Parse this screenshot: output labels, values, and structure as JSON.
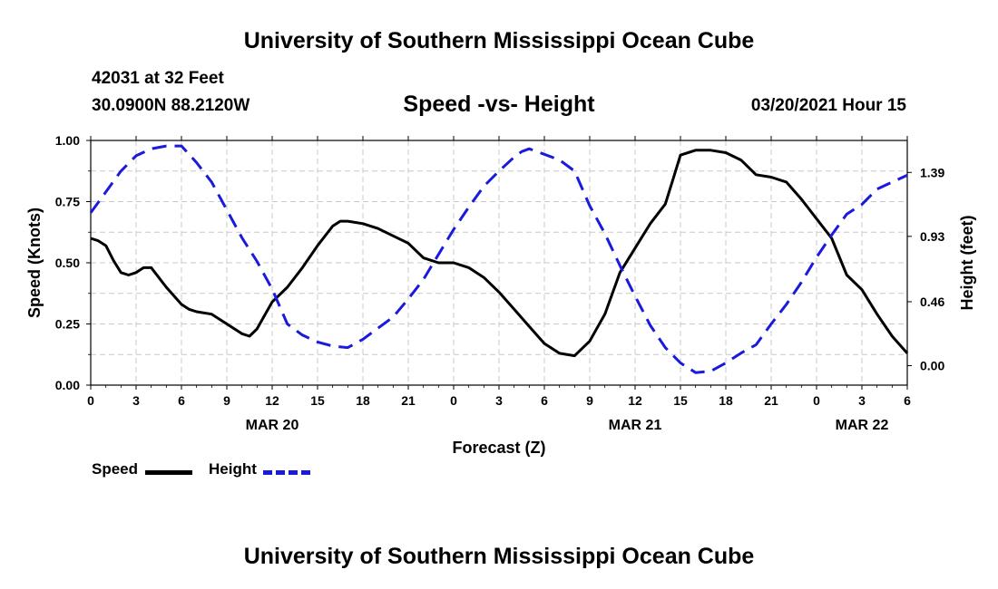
{
  "header": {
    "title": "University of Southern Mississippi Ocean Cube",
    "station": "42031 at 32 Feet",
    "coords": "30.0900N 88.2120W",
    "subtitle": "Speed -vs- Height",
    "datetime": "03/20/2021 Hour 15"
  },
  "footer": {
    "title": "University of Southern Mississippi Ocean Cube"
  },
  "legend": {
    "speed_label": "Speed",
    "height_label": "Height"
  },
  "chart_data": {
    "type": "line",
    "title": "Speed -vs- Height",
    "xlabel": "Forecast (Z)",
    "ylabel_left": "Speed (Knots)",
    "ylabel_right": "Height (feet)",
    "x_range": [
      0,
      54
    ],
    "x_ticks": [
      0,
      3,
      6,
      9,
      12,
      15,
      18,
      21,
      24,
      27,
      30,
      33,
      36,
      39,
      42,
      45,
      48,
      51,
      54
    ],
    "x_tick_labels": [
      "0",
      "3",
      "6",
      "9",
      "12",
      "15",
      "18",
      "21",
      "0",
      "3",
      "6",
      "9",
      "12",
      "15",
      "18",
      "21",
      "0",
      "3",
      "6"
    ],
    "date_labels": [
      {
        "x": 12,
        "label": "MAR 20"
      },
      {
        "x": 36,
        "label": "MAR 21"
      },
      {
        "x": 51,
        "label": "MAR 22"
      }
    ],
    "y_left_range": [
      0,
      1
    ],
    "y_left_ticks": [
      0.0,
      0.25,
      0.5,
      0.75,
      1.0
    ],
    "y_left_tick_labels": [
      "0.00",
      "0.25",
      "0.50",
      "0.75",
      "1.00"
    ],
    "y_right_range": [
      -0.14,
      1.62
    ],
    "y_right_ticks": [
      0.0,
      0.46,
      0.93,
      1.39
    ],
    "y_right_tick_labels": [
      "0.00",
      "0.46",
      "0.93",
      "1.39"
    ],
    "grid": true,
    "series": [
      {
        "name": "Speed",
        "axis": "left",
        "color": "#000000",
        "style": "solid",
        "x": [
          0,
          0.5,
          1,
          1.5,
          2,
          2.5,
          3,
          3.5,
          4,
          5,
          6,
          6.5,
          7,
          8,
          9,
          10,
          10.5,
          11,
          12,
          13,
          14,
          15,
          16,
          16.5,
          17,
          18,
          19,
          20,
          21,
          22,
          23,
          24,
          25,
          26,
          27,
          28,
          29,
          30,
          31,
          32,
          33,
          34,
          35,
          36,
          37,
          38,
          38.5,
          39,
          40,
          40.5,
          41,
          42,
          43,
          44,
          45,
          46,
          47,
          48,
          49,
          50,
          51,
          52,
          53,
          54
        ],
        "y": [
          0.6,
          0.59,
          0.57,
          0.51,
          0.46,
          0.45,
          0.46,
          0.48,
          0.48,
          0.4,
          0.33,
          0.31,
          0.3,
          0.29,
          0.25,
          0.21,
          0.2,
          0.23,
          0.34,
          0.4,
          0.48,
          0.57,
          0.65,
          0.67,
          0.67,
          0.66,
          0.64,
          0.61,
          0.58,
          0.52,
          0.5,
          0.5,
          0.48,
          0.44,
          0.38,
          0.31,
          0.24,
          0.17,
          0.13,
          0.12,
          0.18,
          0.29,
          0.46,
          0.56,
          0.66,
          0.74,
          0.84,
          0.94,
          0.96,
          0.96,
          0.96,
          0.95,
          0.92,
          0.86,
          0.85,
          0.83,
          0.76,
          0.68,
          0.6,
          0.45,
          0.39,
          0.29,
          0.2,
          0.13
        ]
      },
      {
        "name": "Height",
        "axis": "right",
        "color": "#1a1adc",
        "style": "dashed",
        "x": [
          0,
          1,
          2,
          3,
          4,
          5,
          6,
          7,
          8,
          9,
          10,
          11,
          12,
          13,
          14,
          15,
          16,
          17,
          18,
          19,
          20,
          21,
          22,
          23,
          24,
          25,
          26,
          27,
          28,
          28.5,
          29,
          30,
          31,
          32,
          33,
          34,
          35,
          36,
          37,
          38,
          39,
          40,
          41,
          42,
          43,
          44,
          45,
          46,
          47,
          48,
          49,
          50,
          51,
          52,
          53,
          54
        ],
        "y": [
          1.1,
          1.25,
          1.4,
          1.51,
          1.56,
          1.58,
          1.58,
          1.46,
          1.32,
          1.12,
          0.92,
          0.75,
          0.55,
          0.3,
          0.22,
          0.17,
          0.14,
          0.13,
          0.19,
          0.27,
          0.35,
          0.48,
          0.62,
          0.8,
          0.98,
          1.14,
          1.29,
          1.4,
          1.5,
          1.54,
          1.56,
          1.52,
          1.48,
          1.4,
          1.15,
          0.95,
          0.72,
          0.5,
          0.29,
          0.13,
          0.02,
          -0.05,
          -0.04,
          0.02,
          0.09,
          0.15,
          0.3,
          0.44,
          0.6,
          0.78,
          0.94,
          1.09,
          1.16,
          1.27,
          1.32,
          1.37
        ]
      }
    ]
  }
}
